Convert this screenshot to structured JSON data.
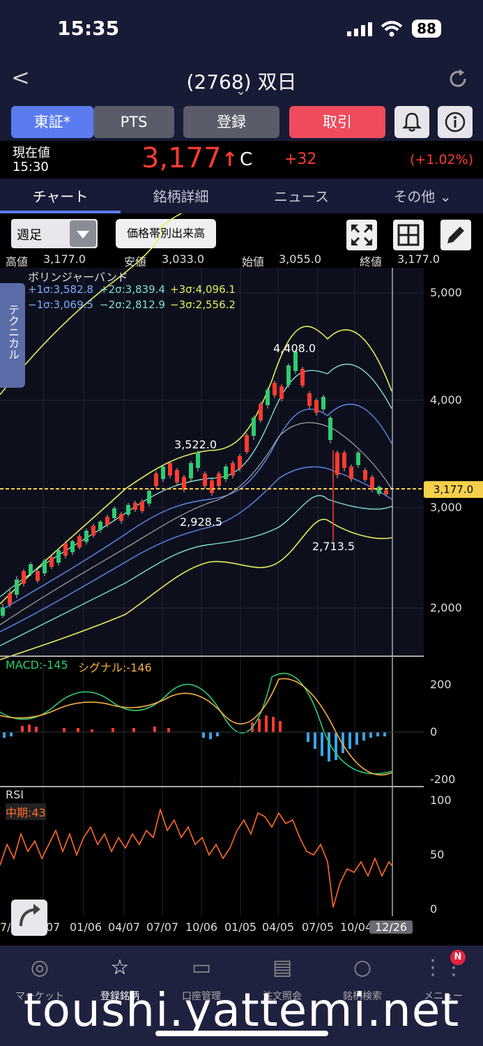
{
  "status_bar": {
    "time": "15:35",
    "battery": "88"
  },
  "header": {
    "title": "(2768) 双日",
    "back": "<",
    "chevron": "⌄"
  },
  "toolbar": {
    "market": "東証*",
    "pts": "PTS",
    "register": "登録",
    "trade": "取引"
  },
  "quote": {
    "label": "現在値",
    "time": "15:30",
    "price": "3,177",
    "arrow": "↑",
    "flag": "C",
    "change": "+32",
    "change_pct": "(+1.02%)"
  },
  "tabs": [
    "チャート",
    "銘柄詳細",
    "ニュース",
    "その他 ⌄"
  ],
  "chart_controls": {
    "period": "週足",
    "volume_btn": "価格帯別出来高",
    "side_tab": "テクニカル"
  },
  "ohlc": {
    "high_label": "高値",
    "high": "3,177.0",
    "low_label": "安値",
    "low": "3,033.0",
    "open_label": "始値",
    "open": "3,055.0",
    "close_label": "終値",
    "close": "3,177.0"
  },
  "bollinger": {
    "title": "ボリンジャーバンド",
    "p1": "+1σ:3,582.8",
    "p2": "+2σ:3,839.4",
    "p3": "+3σ:4,096.1",
    "m1": "−1σ:3,069.5",
    "m2": "−2σ:2,812.9",
    "m3": "−3σ:2,556.2"
  },
  "annotations": {
    "a1": "4,408.0",
    "a2": "3,522.0",
    "a3": "2,928.5",
    "a4": "2,713.5",
    "current": "3,177.0"
  },
  "price_axis": [
    "5,000",
    "4,000",
    "3,000",
    "2,000"
  ],
  "macd": {
    "label": "MACD:-145",
    "signal": "シグナル:-146",
    "axis": [
      "200",
      "0",
      "-200"
    ]
  },
  "rsi": {
    "label": "RSI",
    "mid": "中期:43",
    "axis": [
      "100",
      "50",
      "0"
    ]
  },
  "x_axis": [
    "7/0",
    "07",
    "01/06",
    "04/07",
    "07/07",
    "10/06",
    "01/05",
    "04/05",
    "07/05",
    "10/04",
    "12/26"
  ],
  "bottom_nav": [
    "マーケット",
    "登録銘柄",
    "口座管理",
    "注文照会",
    "銘柄検索",
    "メニュー"
  ],
  "badge": "N",
  "watermark": "toushi.yattemi.net",
  "colors": {
    "up": "#ff3b30",
    "down": "#2ecc71",
    "accent": "#5b7cf0",
    "trade": "#ef4b5c"
  }
}
